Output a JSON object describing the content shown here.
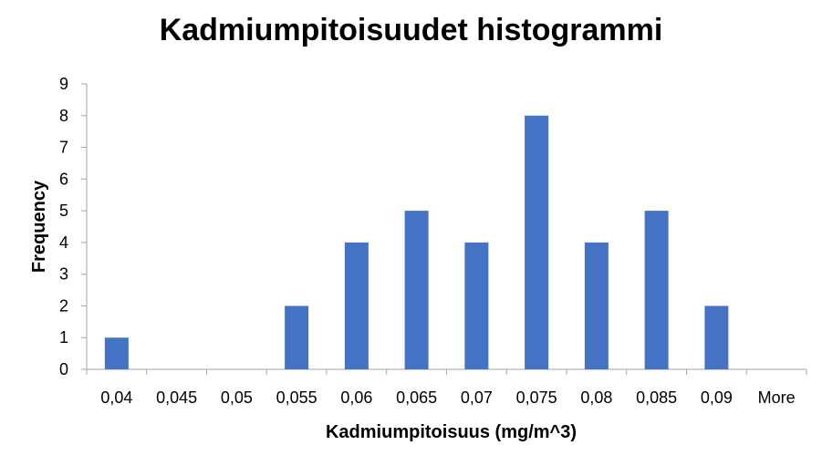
{
  "chart_data": {
    "type": "bar",
    "title": "Kadmiumpitoisuudet histogrammi",
    "xlabel": "Kadmiumpitoisuus (mg/m^3)",
    "ylabel": "Frequency",
    "categories": [
      "0,04",
      "0,045",
      "0,05",
      "0,055",
      "0,06",
      "0,065",
      "0,07",
      "0,075",
      "0,08",
      "0,085",
      "0,09",
      "More"
    ],
    "values": [
      1,
      0,
      0,
      2,
      4,
      5,
      4,
      8,
      4,
      5,
      2,
      0
    ],
    "ylim": [
      0,
      9
    ],
    "yticks": [
      "0",
      "1",
      "2",
      "3",
      "4",
      "5",
      "6",
      "7",
      "8",
      "9"
    ],
    "grid": false,
    "legend": "none",
    "colors": {
      "bar": "#4472C4",
      "axis": "#a6a6a6"
    }
  }
}
